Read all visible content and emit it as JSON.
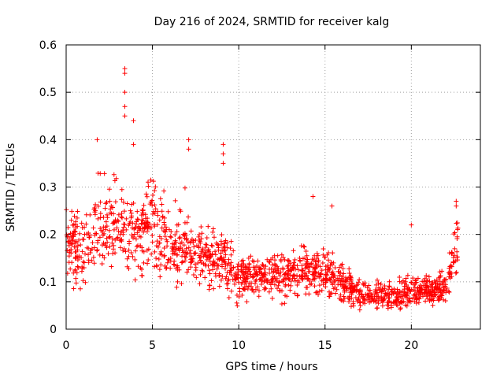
{
  "chart_data": {
    "type": "scatter",
    "title": "Day 216 of 2024, SRMTID for receiver kalg",
    "xlabel": "GPS time / hours",
    "ylabel": "SRMTID / TECUs",
    "xlim": [
      0,
      24
    ],
    "ylim": [
      0,
      0.6
    ],
    "x_ticks": [
      0,
      5,
      10,
      15,
      20
    ],
    "x_tick_labels": [
      "0",
      "5",
      "10",
      "15",
      "20"
    ],
    "y_ticks": [
      0,
      0.1,
      0.2,
      0.3,
      0.4,
      0.5,
      0.6
    ],
    "y_tick_labels": [
      "0",
      "0.1",
      "0.2",
      "0.3",
      "0.4",
      "0.5",
      "0.6"
    ],
    "grid": true,
    "marker": "+",
    "series_color": "#ff0000",
    "x_range_hours": [
      0,
      22.7
    ],
    "trend": [
      {
        "x": 0.0,
        "y": 0.19
      },
      {
        "x": 1.0,
        "y": 0.18
      },
      {
        "x": 2.0,
        "y": 0.22
      },
      {
        "x": 3.0,
        "y": 0.23
      },
      {
        "x": 4.0,
        "y": 0.18
      },
      {
        "x": 5.0,
        "y": 0.24
      },
      {
        "x": 6.0,
        "y": 0.17
      },
      {
        "x": 7.0,
        "y": 0.19
      },
      {
        "x": 8.0,
        "y": 0.15
      },
      {
        "x": 9.0,
        "y": 0.15
      },
      {
        "x": 10.0,
        "y": 0.11
      },
      {
        "x": 11.0,
        "y": 0.11
      },
      {
        "x": 12.0,
        "y": 0.11
      },
      {
        "x": 13.0,
        "y": 0.12
      },
      {
        "x": 14.0,
        "y": 0.12
      },
      {
        "x": 15.0,
        "y": 0.12
      },
      {
        "x": 16.0,
        "y": 0.1
      },
      {
        "x": 17.0,
        "y": 0.07
      },
      {
        "x": 18.0,
        "y": 0.07
      },
      {
        "x": 19.0,
        "y": 0.07
      },
      {
        "x": 20.0,
        "y": 0.08
      },
      {
        "x": 21.0,
        "y": 0.08
      },
      {
        "x": 22.0,
        "y": 0.09
      },
      {
        "x": 22.7,
        "y": 0.19
      }
    ],
    "spikes": [
      {
        "x": 1.8,
        "y": 0.4
      },
      {
        "x": 3.4,
        "y": 0.55
      },
      {
        "x": 3.4,
        "y": 0.54
      },
      {
        "x": 3.4,
        "y": 0.5
      },
      {
        "x": 3.4,
        "y": 0.47
      },
      {
        "x": 3.4,
        "y": 0.45
      },
      {
        "x": 3.9,
        "y": 0.44
      },
      {
        "x": 3.9,
        "y": 0.39
      },
      {
        "x": 7.1,
        "y": 0.4
      },
      {
        "x": 7.1,
        "y": 0.38
      },
      {
        "x": 9.1,
        "y": 0.39
      },
      {
        "x": 9.1,
        "y": 0.37
      },
      {
        "x": 9.1,
        "y": 0.35
      },
      {
        "x": 14.3,
        "y": 0.28
      },
      {
        "x": 15.4,
        "y": 0.26
      },
      {
        "x": 20.0,
        "y": 0.22
      },
      {
        "x": 22.6,
        "y": 0.27
      },
      {
        "x": 22.6,
        "y": 0.26
      }
    ]
  }
}
